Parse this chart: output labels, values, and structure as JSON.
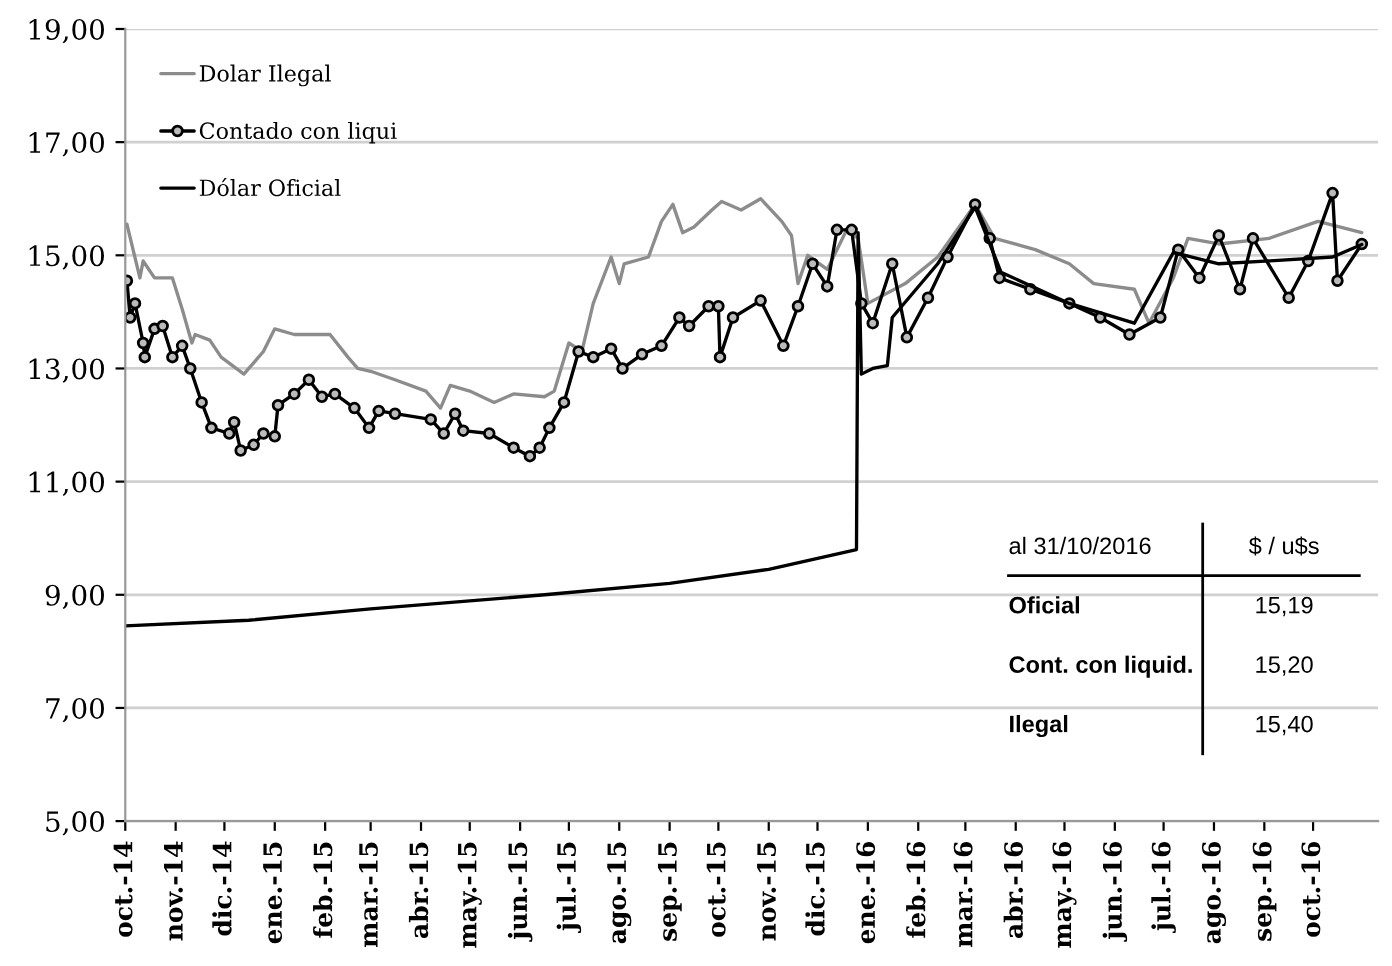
{
  "chart_data": {
    "type": "line",
    "xlim": [
      "2014-10-01",
      "2016-11-10"
    ],
    "ylim": [
      5,
      19
    ],
    "xticks": [
      {
        "value": "2014-10-01",
        "label": "oct.-14"
      },
      {
        "value": "2014-11-01",
        "label": "nov.-14"
      },
      {
        "value": "2014-12-01",
        "label": "dic.-14"
      },
      {
        "value": "2015-01-01",
        "label": "ene.-15"
      },
      {
        "value": "2015-02-01",
        "label": "feb.-15"
      },
      {
        "value": "2015-03-01",
        "label": "mar.-15"
      },
      {
        "value": "2015-04-01",
        "label": "abr.-15"
      },
      {
        "value": "2015-05-01",
        "label": "may.-15"
      },
      {
        "value": "2015-06-01",
        "label": "jun.-15"
      },
      {
        "value": "2015-07-01",
        "label": "jul.-15"
      },
      {
        "value": "2015-08-01",
        "label": "ago.-15"
      },
      {
        "value": "2015-09-01",
        "label": "sep.-15"
      },
      {
        "value": "2015-10-01",
        "label": "oct.-15"
      },
      {
        "value": "2015-11-01",
        "label": "nov.-15"
      },
      {
        "value": "2015-12-01",
        "label": "dic.-15"
      },
      {
        "value": "2016-01-01",
        "label": "ene.-16"
      },
      {
        "value": "2016-02-01",
        "label": "feb.-16"
      },
      {
        "value": "2016-03-01",
        "label": "mar.-16"
      },
      {
        "value": "2016-04-01",
        "label": "abr.-16"
      },
      {
        "value": "2016-05-01",
        "label": "may.-16"
      },
      {
        "value": "2016-06-01",
        "label": "jun.-16"
      },
      {
        "value": "2016-07-01",
        "label": "jul.-16"
      },
      {
        "value": "2016-08-01",
        "label": "ago.-16"
      },
      {
        "value": "2016-09-01",
        "label": "sep.-16"
      },
      {
        "value": "2016-10-01",
        "label": "oct.-16"
      }
    ],
    "yticks": [
      {
        "value": 5,
        "label": "5,00"
      },
      {
        "value": 7,
        "label": "7,00"
      },
      {
        "value": 9,
        "label": "9,00"
      },
      {
        "value": 11,
        "label": "11,00"
      },
      {
        "value": 13,
        "label": "13,00"
      },
      {
        "value": 15,
        "label": "15,00"
      },
      {
        "value": 17,
        "label": "17,00"
      },
      {
        "value": 19,
        "label": "19,00"
      }
    ],
    "grid": "y",
    "legend": "top left",
    "series": [
      {
        "name": "Dolar Ilegal",
        "color": "#8c8c8c",
        "marker": "none",
        "x": [
          "2014-10-02",
          "2014-10-10",
          "2014-10-12",
          "2014-10-19",
          "2014-10-30",
          "2014-11-05",
          "2014-11-11",
          "2014-11-13",
          "2014-11-22",
          "2014-11-29",
          "2014-12-13",
          "2014-12-16",
          "2014-12-19",
          "2014-12-25",
          "2015-01-01",
          "2015-01-13",
          "2015-02-04",
          "2015-02-15",
          "2015-02-21",
          "2015-03-01",
          "2015-03-16",
          "2015-04-04",
          "2015-04-13",
          "2015-04-19",
          "2015-05-01",
          "2015-05-16",
          "2015-05-28",
          "2015-06-16",
          "2015-06-22",
          "2015-07-01",
          "2015-07-09",
          "2015-07-16",
          "2015-07-27",
          "2015-08-01",
          "2015-08-04",
          "2015-08-19",
          "2015-08-27",
          "2015-09-03",
          "2015-09-09",
          "2015-09-16",
          "2015-09-27",
          "2015-10-03",
          "2015-10-15",
          "2015-10-27",
          "2015-11-09",
          "2015-11-15",
          "2015-11-19",
          "2015-11-25",
          "2015-12-07",
          "2015-12-19",
          "2015-12-26",
          "2016-01-01",
          "2016-01-24",
          "2016-02-13",
          "2016-03-07",
          "2016-03-19",
          "2016-04-13",
          "2016-05-04",
          "2016-05-19",
          "2016-06-13",
          "2016-06-22",
          "2016-07-07",
          "2016-07-16",
          "2016-08-04",
          "2016-09-04",
          "2016-10-04",
          "2016-10-31"
        ],
        "values": [
          15.55,
          14.6,
          14.9,
          14.6,
          14.6,
          14.05,
          13.45,
          13.6,
          13.5,
          13.2,
          12.9,
          13.0,
          13.1,
          13.3,
          13.7,
          13.6,
          13.6,
          13.2,
          13.0,
          12.95,
          12.8,
          12.6,
          12.3,
          12.7,
          12.6,
          12.4,
          12.55,
          12.5,
          12.6,
          13.45,
          13.3,
          14.15,
          14.97,
          14.5,
          14.85,
          14.97,
          15.6,
          15.9,
          15.4,
          15.5,
          15.8,
          15.95,
          15.8,
          16.0,
          15.6,
          15.35,
          14.5,
          15.0,
          14.75,
          15.45,
          15.3,
          14.15,
          14.5,
          14.97,
          15.9,
          15.3,
          15.1,
          14.85,
          14.5,
          14.4,
          13.8,
          14.6,
          15.3,
          15.2,
          15.3,
          15.6,
          15.4
        ]
      },
      {
        "name": "Contado con liqui",
        "color": "#000000",
        "marker": "circle",
        "x": [
          "2014-10-02",
          "2014-10-04",
          "2014-10-07",
          "2014-10-12",
          "2014-10-13",
          "2014-10-19",
          "2014-10-24",
          "2014-10-30",
          "2014-11-05",
          "2014-11-10",
          "2014-11-17",
          "2014-11-23",
          "2014-12-04",
          "2014-12-07",
          "2014-12-11",
          "2014-12-19",
          "2014-12-25",
          "2015-01-01",
          "2015-01-03",
          "2015-01-13",
          "2015-01-22",
          "2015-01-30",
          "2015-02-07",
          "2015-02-19",
          "2015-02-28",
          "2015-03-06",
          "2015-03-16",
          "2015-04-07",
          "2015-04-15",
          "2015-04-22",
          "2015-04-27",
          "2015-05-13",
          "2015-05-28",
          "2015-06-07",
          "2015-06-13",
          "2015-06-19",
          "2015-06-28",
          "2015-07-07",
          "2015-07-16",
          "2015-07-27",
          "2015-08-03",
          "2015-08-15",
          "2015-08-27",
          "2015-09-07",
          "2015-09-13",
          "2015-09-25",
          "2015-10-01",
          "2015-10-02",
          "2015-10-10",
          "2015-10-27",
          "2015-11-10",
          "2015-11-19",
          "2015-11-28",
          "2015-12-07",
          "2015-12-13",
          "2015-12-22",
          "2015-12-28",
          "2016-01-04",
          "2016-01-16",
          "2016-01-25",
          "2016-02-07",
          "2016-02-19",
          "2016-03-07",
          "2016-03-16",
          "2016-03-22",
          "2016-04-10",
          "2016-05-04",
          "2016-05-23",
          "2016-06-10",
          "2016-06-29",
          "2016-07-10",
          "2016-07-23",
          "2016-08-04",
          "2016-08-17",
          "2016-08-25",
          "2016-09-16",
          "2016-09-28",
          "2016-10-13",
          "2016-10-16",
          "2016-10-31"
        ],
        "values": [
          14.55,
          13.9,
          14.15,
          13.45,
          13.2,
          13.7,
          13.75,
          13.2,
          13.4,
          13.0,
          12.4,
          11.95,
          11.85,
          12.05,
          11.55,
          11.65,
          11.85,
          11.8,
          12.35,
          12.55,
          12.8,
          12.5,
          12.55,
          12.3,
          11.95,
          12.25,
          12.2,
          12.1,
          11.85,
          12.2,
          11.9,
          11.85,
          11.6,
          11.45,
          11.6,
          11.95,
          12.4,
          13.3,
          13.2,
          13.35,
          13.0,
          13.25,
          13.4,
          13.9,
          13.75,
          14.1,
          14.1,
          13.2,
          13.9,
          14.2,
          13.4,
          14.1,
          14.85,
          14.45,
          15.45,
          15.45,
          14.15,
          13.8,
          14.85,
          13.55,
          14.25,
          14.97,
          15.9,
          15.3,
          14.6,
          14.4,
          14.15,
          13.9,
          13.6,
          13.9,
          15.1,
          14.6,
          15.35,
          14.4,
          15.3,
          14.25,
          14.9,
          16.1,
          14.55,
          15.2
        ]
      },
      {
        "name": "Dólar Oficial",
        "color": "#000000",
        "marker": "none",
        "x": [
          "2014-10-01",
          "2014-12-16",
          "2015-03-01",
          "2015-06-16",
          "2015-09-01",
          "2015-11-01",
          "2015-12-25",
          "2015-12-26",
          "2015-12-28",
          "2016-01-04",
          "2016-01-13",
          "2016-01-16",
          "2016-02-13",
          "2016-03-07",
          "2016-03-23",
          "2016-05-04",
          "2016-06-13",
          "2016-07-07",
          "2016-08-04",
          "2016-09-04",
          "2016-10-13",
          "2016-10-31"
        ],
        "values": [
          8.45,
          8.55,
          8.75,
          9.0,
          9.2,
          9.45,
          9.8,
          15.4,
          12.9,
          13.0,
          13.05,
          13.9,
          14.85,
          15.85,
          14.7,
          14.15,
          13.8,
          15.05,
          14.85,
          14.9,
          14.97,
          15.19
        ]
      }
    ],
    "annotations": [
      "al 31/10/2016",
      "$ / u$s",
      "Oficial",
      "15,19",
      "Cont. con liquid.",
      "15,20",
      "Ilegal",
      "15,40"
    ]
  }
}
